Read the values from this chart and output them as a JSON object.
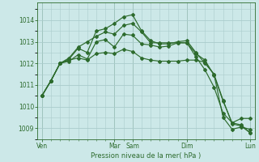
{
  "bg_color": "#cce8e8",
  "grid_color": "#aacccc",
  "line_color": "#2d6b2d",
  "xlabel": "Pression niveau de la mer( hPa )",
  "ylim": [
    1008.5,
    1014.8
  ],
  "yticks": [
    1009,
    1010,
    1011,
    1012,
    1013,
    1014
  ],
  "day_labels": [
    "Ven",
    "",
    "Mar",
    "Sam",
    "",
    "Dim",
    "",
    "Lun"
  ],
  "day_positions": [
    0,
    4,
    8,
    10,
    14,
    16,
    20,
    23
  ],
  "n_points": 24,
  "lines": [
    [
      1010.5,
      1011.2,
      1012.0,
      1012.2,
      1012.7,
      1012.5,
      1013.5,
      1013.6,
      1013.85,
      1014.15,
      1014.25,
      1013.5,
      1013.05,
      1012.9,
      1012.9,
      1013.0,
      1013.05,
      1012.5,
      1012.0,
      1011.5,
      1010.3,
      1009.2,
      1009.1,
      1008.78
    ],
    [
      1010.5,
      1011.2,
      1012.0,
      1012.1,
      1012.4,
      1012.2,
      1013.0,
      1013.1,
      1012.75,
      1013.35,
      1013.3,
      1012.9,
      1012.85,
      1012.75,
      1012.8,
      1012.95,
      1012.95,
      1012.3,
      1011.7,
      1010.9,
      1009.7,
      1009.25,
      1009.45,
      1009.45
    ],
    [
      1010.5,
      1011.2,
      1012.0,
      1012.15,
      1012.25,
      1012.15,
      1012.45,
      1012.5,
      1012.45,
      1012.65,
      1012.55,
      1012.25,
      1012.15,
      1012.1,
      1012.1,
      1012.1,
      1012.15,
      1012.15,
      1012.05,
      1011.5,
      1009.5,
      1008.95,
      1009.05,
      1008.95
    ],
    [
      1010.5,
      1011.2,
      1012.0,
      1012.25,
      1012.75,
      1013.0,
      1013.25,
      1013.45,
      1013.35,
      1013.75,
      1013.85,
      1013.45,
      1012.95,
      1012.95,
      1012.95,
      1012.95,
      1012.95,
      1012.45,
      1012.15,
      1011.45,
      1010.25,
      1009.25,
      1009.15,
      1008.78
    ]
  ]
}
